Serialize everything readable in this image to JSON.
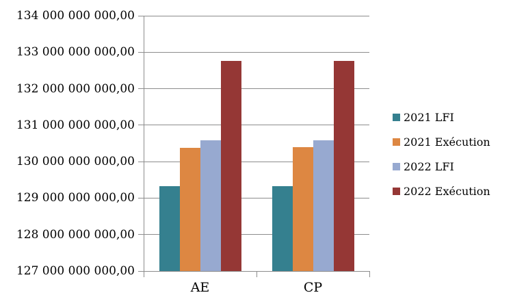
{
  "chart_data": {
    "type": "bar",
    "categories": [
      "AE",
      "CP"
    ],
    "series": [
      {
        "name": "2021 LFI",
        "color": "#35808F",
        "values": [
          129330000000,
          129330000000
        ]
      },
      {
        "name": "2021 Exécution",
        "color": "#DD8742",
        "values": [
          130380000000,
          130390000000
        ]
      },
      {
        "name": "2022 LFI",
        "color": "#97A9D0",
        "values": [
          130580000000,
          130580000000
        ]
      },
      {
        "name": "2022 Exécution",
        "color": "#953735",
        "values": [
          132760000000,
          132760000000
        ]
      }
    ],
    "ylim": [
      127000000000,
      134000000000
    ],
    "ytick_step": 1000000000,
    "y_tick_labels": [
      "134 000 000 000,00",
      "133 000 000 000,00",
      "132 000 000 000,00",
      "131 000 000 000,00",
      "130 000 000 000,00",
      "129 000 000 000,00",
      "128 000 000 000,00",
      "127 000 000 000,00"
    ],
    "x_tick_labels": [
      "AE",
      "CP"
    ],
    "legend_entries": [
      "2021 LFI",
      "2021 Exécution",
      "2022 LFI",
      "2022 Exécution"
    ],
    "legend_position": "right",
    "grid": "horizontal",
    "axis_color": "#8c8c8c",
    "text_color": "#000000",
    "background": "#ffffff"
  }
}
